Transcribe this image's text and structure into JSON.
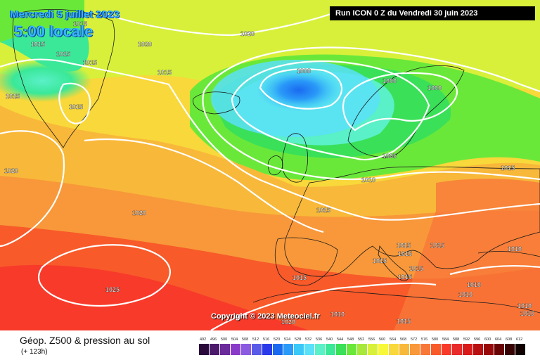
{
  "header": {
    "date": "Mercredi 5 juillet 2023",
    "time": "5:00 locale",
    "run": "Run ICON 0 Z du Vendredi 30 juin 2023"
  },
  "copyright": "Copyright © 2023 Meteociel.fr",
  "footer": {
    "title": "Géop. Z500 & pression au sol",
    "subtitle": "(+ 123h)"
  },
  "legend": {
    "ticks": [
      "492",
      "496",
      "500",
      "504",
      "508",
      "512",
      "516",
      "520",
      "524",
      "528",
      "532",
      "536",
      "540",
      "544",
      "548",
      "552",
      "556",
      "560",
      "564",
      "568",
      "572",
      "576",
      "580",
      "584",
      "588",
      "592",
      "596",
      "600",
      "604",
      "608",
      "612"
    ],
    "colors": [
      "#2a0a3a",
      "#4b1a6a",
      "#6a2a9a",
      "#8a3ac8",
      "#8a5ae0",
      "#5a5ae8",
      "#2a3ae8",
      "#1a6af0",
      "#2a9af8",
      "#3ac8f8",
      "#5ae0f8",
      "#5af0c8",
      "#3ae898",
      "#3ae058",
      "#6ae83a",
      "#a8e83a",
      "#d8f03a",
      "#f8f83a",
      "#f8d83a",
      "#f8b83a",
      "#f8983a",
      "#f8783a",
      "#f85a2a",
      "#f83a2a",
      "#e82a2a",
      "#d81a1a",
      "#b81010",
      "#980808",
      "#680404",
      "#380202",
      "#100000"
    ]
  },
  "isobars": [
    {
      "value": "1015",
      "label": "1015"
    },
    {
      "value": "1020",
      "label": "1020"
    },
    {
      "value": "1000",
      "label": "1000"
    },
    {
      "value": "1005",
      "label": "1005"
    },
    {
      "value": "1010",
      "label": "1010"
    },
    {
      "value": "1025",
      "label": "1025"
    }
  ],
  "pressure_labels": [
    "1015",
    "1015",
    "1015",
    "1015",
    "1015",
    "1015",
    "1020",
    "1020",
    "1020",
    "1015",
    "1000",
    "1000",
    "1000",
    "1005",
    "1010",
    "1015",
    "1020",
    "1015",
    "1015",
    "1015",
    "1015",
    "1015",
    "1015",
    "1010",
    "1010",
    "1015",
    "1025",
    "1015",
    "1010",
    "1010",
    "1010",
    "1010",
    "1020",
    "1015"
  ]
}
